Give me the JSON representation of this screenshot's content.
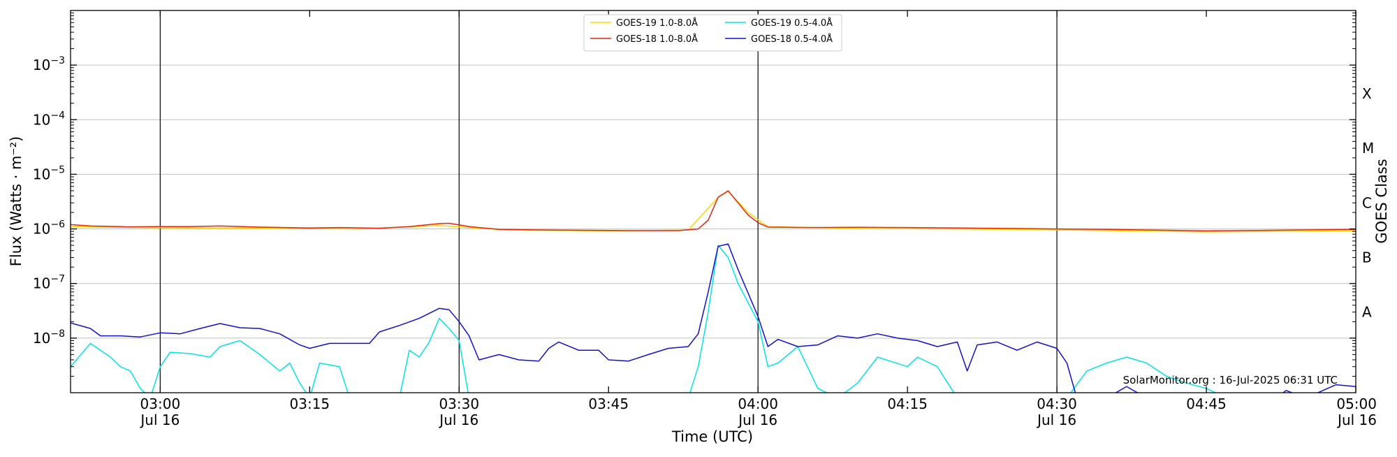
{
  "chart_data": {
    "type": "line",
    "xlabel": "Time (UTC)",
    "ylabel": "Flux (Watts · m⁻²)",
    "ylabel_right": "GOES Class",
    "y_scale": "log",
    "ylim": [
      1e-09,
      0.01
    ],
    "xlim": [
      "02:51",
      "05:00"
    ],
    "grid": "horizontal at decades; vertical lines every 30 min",
    "legend_position": "top-center",
    "watermark": "SolarMonitor.org : 16-Jul-2025 06:31 UTC",
    "x_ticks": [
      {
        "time": "03:00",
        "label": "03:00",
        "date": "Jul 16"
      },
      {
        "time": "03:15",
        "label": "03:15",
        "date": ""
      },
      {
        "time": "03:30",
        "label": "03:30",
        "date": "Jul 16"
      },
      {
        "time": "03:45",
        "label": "03:45",
        "date": ""
      },
      {
        "time": "04:00",
        "label": "04:00",
        "date": "Jul 16"
      },
      {
        "time": "04:15",
        "label": "04:15",
        "date": ""
      },
      {
        "time": "04:30",
        "label": "04:30",
        "date": "Jul 16"
      },
      {
        "time": "04:45",
        "label": "04:45",
        "date": ""
      },
      {
        "time": "05:00",
        "label": "05:00",
        "date": "Jul 16"
      }
    ],
    "y_ticks": [
      {
        "value": 1e-08,
        "mantissa": "10",
        "exp": "−8"
      },
      {
        "value": 1e-07,
        "mantissa": "10",
        "exp": "−7"
      },
      {
        "value": 1e-06,
        "mantissa": "10",
        "exp": "−6"
      },
      {
        "value": 1e-05,
        "mantissa": "10",
        "exp": "−5"
      },
      {
        "value": 0.0001,
        "mantissa": "10",
        "exp": "−4"
      },
      {
        "value": 0.001,
        "mantissa": "10",
        "exp": "−3"
      }
    ],
    "goes_classes": [
      {
        "label": "A",
        "value": 3e-08
      },
      {
        "label": "B",
        "value": 3e-07
      },
      {
        "label": "C",
        "value": 3e-06
      },
      {
        "label": "M",
        "value": 3e-05
      },
      {
        "label": "X",
        "value": 0.0003
      }
    ],
    "series": [
      {
        "name": "GOES-19 1.0-8.0Å",
        "color": "#ffd700",
        "points": [
          [
            "02:51",
            1.1e-06
          ],
          [
            "03:00",
            1.05e-06
          ],
          [
            "03:10",
            1.04e-06
          ],
          [
            "03:20",
            1e-06
          ],
          [
            "03:28",
            1.15e-06
          ],
          [
            "03:35",
            9.5e-07
          ],
          [
            "03:45",
            9.2e-07
          ],
          [
            "03:53",
            9.5e-07
          ],
          [
            "03:56",
            3.8e-06
          ],
          [
            "03:57",
            4.9e-06
          ],
          [
            "03:59",
            2e-06
          ],
          [
            "04:01",
            1.1e-06
          ],
          [
            "04:10",
            1.02e-06
          ],
          [
            "04:20",
            1e-06
          ],
          [
            "04:30",
            9.6e-07
          ],
          [
            "04:45",
            8.8e-07
          ],
          [
            "05:00",
            9.2e-07
          ]
        ]
      },
      {
        "name": "GOES-18 1.0-8.0Å",
        "color": "#e8240c",
        "points": [
          [
            "02:51",
            1.2e-06
          ],
          [
            "02:53",
            1.13e-06
          ],
          [
            "02:57",
            1.09e-06
          ],
          [
            "03:00",
            1.1e-06
          ],
          [
            "03:03",
            1.1e-06
          ],
          [
            "03:06",
            1.13e-06
          ],
          [
            "03:10",
            1.08e-06
          ],
          [
            "03:15",
            1.04e-06
          ],
          [
            "03:18",
            1.06e-06
          ],
          [
            "03:22",
            1.03e-06
          ],
          [
            "03:25",
            1.1e-06
          ],
          [
            "03:28",
            1.25e-06
          ],
          [
            "03:29",
            1.27e-06
          ],
          [
            "03:31",
            1.1e-06
          ],
          [
            "03:34",
            9.8e-07
          ],
          [
            "03:40",
            9.5e-07
          ],
          [
            "03:47",
            9.3e-07
          ],
          [
            "03:52",
            9.3e-07
          ],
          [
            "03:54",
            1e-06
          ],
          [
            "03:55",
            1.45e-06
          ],
          [
            "03:56",
            3.8e-06
          ],
          [
            "03:57",
            5e-06
          ],
          [
            "03:58",
            3e-06
          ],
          [
            "03:59",
            1.8e-06
          ],
          [
            "04:00",
            1.3e-06
          ],
          [
            "04:01",
            1.08e-06
          ],
          [
            "04:05",
            1.06e-06
          ],
          [
            "04:10",
            1.07e-06
          ],
          [
            "04:15",
            1.06e-06
          ],
          [
            "04:20",
            1.04e-06
          ],
          [
            "04:25",
            1.02e-06
          ],
          [
            "04:30",
            1e-06
          ],
          [
            "04:35",
            9.8e-07
          ],
          [
            "04:40",
            9.5e-07
          ],
          [
            "04:45",
            9.2e-07
          ],
          [
            "04:50",
            9.4e-07
          ],
          [
            "04:55",
            9.6e-07
          ],
          [
            "05:00",
            9.8e-07
          ]
        ]
      },
      {
        "name": "GOES-19 0.5-4.0Å",
        "color": "#00e5e5",
        "points": [
          [
            "02:51",
            3e-09
          ],
          [
            "02:53",
            8e-09
          ],
          [
            "02:55",
            4.5e-09
          ],
          [
            "02:56",
            3e-09
          ],
          [
            "02:57",
            2.5e-09
          ],
          [
            "02:58",
            1.2e-09
          ],
          [
            "02:59",
            8e-10
          ],
          [
            "03:00",
            3e-09
          ],
          [
            "03:01",
            5.5e-09
          ],
          [
            "03:03",
            5.2e-09
          ],
          [
            "03:05",
            4.5e-09
          ],
          [
            "03:06",
            7e-09
          ],
          [
            "03:08",
            9e-09
          ],
          [
            "03:10",
            5e-09
          ],
          [
            "03:12",
            2.5e-09
          ],
          [
            "03:13",
            3.5e-09
          ],
          [
            "03:14",
            1.5e-09
          ],
          [
            "03:15",
            8e-10
          ],
          [
            "03:16",
            3.5e-09
          ],
          [
            "03:18",
            3e-09
          ],
          [
            "03:19",
            8e-10
          ],
          [
            "03:24",
            8e-10
          ],
          [
            "03:25",
            6e-09
          ],
          [
            "03:26",
            4.5e-09
          ],
          [
            "03:27",
            8.5e-09
          ],
          [
            "03:28",
            2.3e-08
          ],
          [
            "03:29",
            1.5e-08
          ],
          [
            "03:30",
            9e-09
          ],
          [
            "03:31",
            8e-10
          ],
          [
            "03:53",
            8e-10
          ],
          [
            "03:54",
            3e-09
          ],
          [
            "03:55",
            3e-08
          ],
          [
            "03:56",
            5e-07
          ],
          [
            "03:57",
            3e-07
          ],
          [
            "03:58",
            1e-07
          ],
          [
            "04:00",
            2e-08
          ],
          [
            "04:01",
            3e-09
          ],
          [
            "04:02",
            3.5e-09
          ],
          [
            "04:04",
            7e-09
          ],
          [
            "04:06",
            1.2e-09
          ],
          [
            "04:08",
            8e-10
          ],
          [
            "04:10",
            1.5e-09
          ],
          [
            "04:12",
            4.5e-09
          ],
          [
            "04:15",
            3e-09
          ],
          [
            "04:16",
            4.5e-09
          ],
          [
            "04:18",
            3e-09
          ],
          [
            "04:20",
            8e-10
          ],
          [
            "04:31",
            8e-10
          ],
          [
            "04:33",
            2.5e-09
          ],
          [
            "04:35",
            3.5e-09
          ],
          [
            "04:37",
            4.5e-09
          ],
          [
            "04:39",
            3.5e-09
          ],
          [
            "04:41",
            2e-09
          ],
          [
            "04:43",
            1.5e-09
          ],
          [
            "04:45",
            1.2e-09
          ],
          [
            "04:47",
            8e-10
          ],
          [
            "05:00",
            8e-10
          ]
        ]
      },
      {
        "name": "GOES-18 0.5-4.0Å",
        "color": "#1010d0",
        "points": [
          [
            "02:51",
            1.9e-08
          ],
          [
            "02:53",
            1.5e-08
          ],
          [
            "02:54",
            1.1e-08
          ],
          [
            "02:56",
            1.1e-08
          ],
          [
            "02:58",
            1.05e-08
          ],
          [
            "03:00",
            1.25e-08
          ],
          [
            "03:02",
            1.2e-08
          ],
          [
            "03:04",
            1.5e-08
          ],
          [
            "03:06",
            1.85e-08
          ],
          [
            "03:08",
            1.55e-08
          ],
          [
            "03:10",
            1.5e-08
          ],
          [
            "03:12",
            1.2e-08
          ],
          [
            "03:14",
            7.5e-09
          ],
          [
            "03:15",
            6.5e-09
          ],
          [
            "03:17",
            8e-09
          ],
          [
            "03:19",
            8e-09
          ],
          [
            "03:21",
            8e-09
          ],
          [
            "03:22",
            1.3e-08
          ],
          [
            "03:24",
            1.7e-08
          ],
          [
            "03:26",
            2.3e-08
          ],
          [
            "03:28",
            3.5e-08
          ],
          [
            "03:29",
            3.3e-08
          ],
          [
            "03:30",
            2e-08
          ],
          [
            "03:31",
            1.1e-08
          ],
          [
            "03:32",
            4e-09
          ],
          [
            "03:34",
            5e-09
          ],
          [
            "03:36",
            4e-09
          ],
          [
            "03:38",
            3.8e-09
          ],
          [
            "03:39",
            6.5e-09
          ],
          [
            "03:40",
            8.5e-09
          ],
          [
            "03:42",
            6e-09
          ],
          [
            "03:44",
            6e-09
          ],
          [
            "03:45",
            4e-09
          ],
          [
            "03:47",
            3.8e-09
          ],
          [
            "03:49",
            5e-09
          ],
          [
            "03:51",
            6.5e-09
          ],
          [
            "03:53",
            7e-09
          ],
          [
            "03:54",
            1.2e-08
          ],
          [
            "03:55",
            7e-08
          ],
          [
            "03:56",
            4.8e-07
          ],
          [
            "03:57",
            5.3e-07
          ],
          [
            "03:58",
            1.8e-07
          ],
          [
            "04:00",
            2.5e-08
          ],
          [
            "04:01",
            7e-09
          ],
          [
            "04:02",
            9.5e-09
          ],
          [
            "04:04",
            7e-09
          ],
          [
            "04:06",
            7.5e-09
          ],
          [
            "04:08",
            1.1e-08
          ],
          [
            "04:10",
            1e-08
          ],
          [
            "04:12",
            1.2e-08
          ],
          [
            "04:14",
            1e-08
          ],
          [
            "04:16",
            9e-09
          ],
          [
            "04:18",
            7e-09
          ],
          [
            "04:20",
            8.5e-09
          ],
          [
            "04:21",
            2.5e-09
          ],
          [
            "04:22",
            7.5e-09
          ],
          [
            "04:24",
            8.5e-09
          ],
          [
            "04:26",
            6e-09
          ],
          [
            "04:28",
            8.5e-09
          ],
          [
            "04:30",
            6.5e-09
          ],
          [
            "04:31",
            3.5e-09
          ],
          [
            "04:32",
            8e-10
          ],
          [
            "04:35",
            8e-10
          ],
          [
            "04:37",
            1.3e-09
          ],
          [
            "04:39",
            8e-10
          ],
          [
            "04:52",
            8e-10
          ],
          [
            "04:53",
            1.1e-09
          ],
          [
            "04:55",
            8e-10
          ],
          [
            "04:58",
            1.4e-09
          ],
          [
            "05:00",
            1.3e-09
          ]
        ]
      }
    ]
  }
}
